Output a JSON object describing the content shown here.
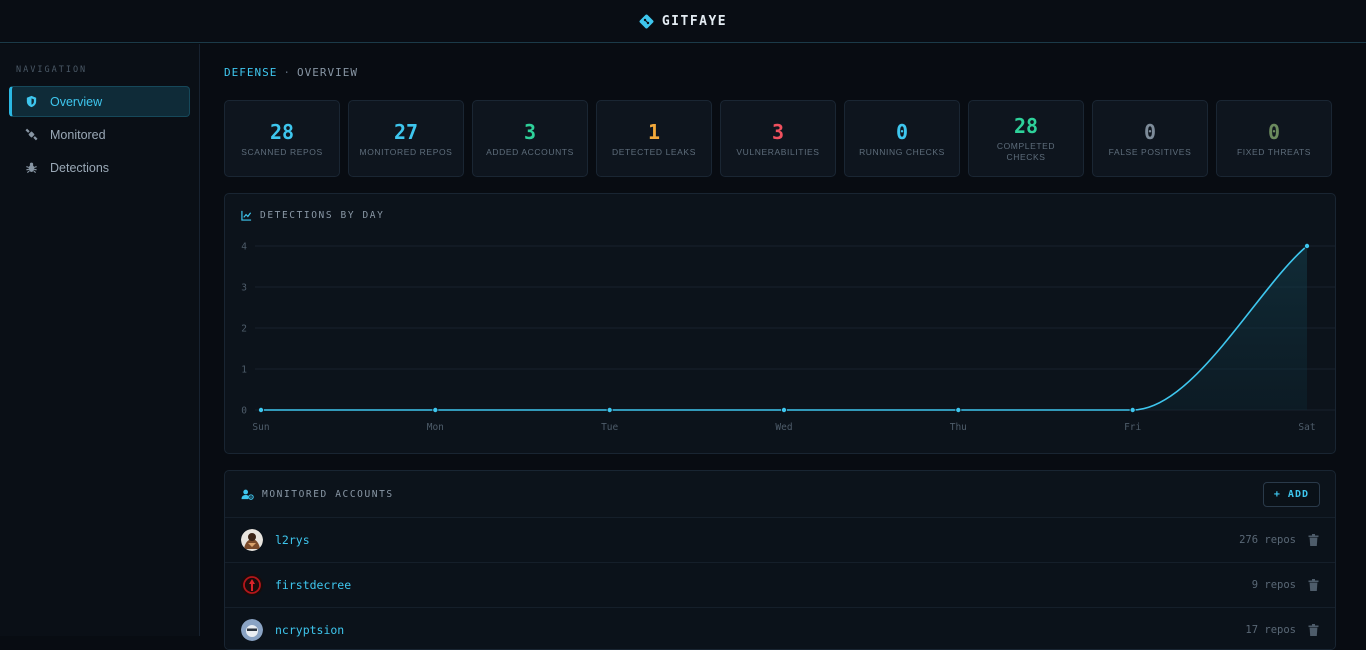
{
  "app": {
    "title": "GITFAYE"
  },
  "sidebar": {
    "heading": "NAVIGATION",
    "items": [
      {
        "label": "Overview",
        "icon": "shield-icon",
        "active": true
      },
      {
        "label": "Monitored",
        "icon": "satellite-icon",
        "active": false
      },
      {
        "label": "Detections",
        "icon": "bug-icon",
        "active": false
      }
    ]
  },
  "breadcrumb": {
    "section": "DEFENSE",
    "separator": "·",
    "page": "OVERVIEW"
  },
  "stats": [
    {
      "value": "28",
      "label": "SCANNED REPOS",
      "color": "#3ec6ee"
    },
    {
      "value": "27",
      "label": "MONITORED REPOS",
      "color": "#3ec6ee"
    },
    {
      "value": "3",
      "label": "ADDED ACCOUNTS",
      "color": "#2ed19a"
    },
    {
      "value": "1",
      "label": "DETECTED LEAKS",
      "color": "#f2a93b"
    },
    {
      "value": "3",
      "label": "VULNERABILITIES",
      "color": "#f0505e"
    },
    {
      "value": "0",
      "label": "RUNNING CHECKS",
      "color": "#3ec6ee"
    },
    {
      "value": "28",
      "label": "COMPLETED CHECKS",
      "color": "#2ed19a"
    },
    {
      "value": "0",
      "label": "FALSE POSITIVES",
      "color": "#7d8b99"
    },
    {
      "value": "0",
      "label": "FIXED THREATS",
      "color": "#6b8a5e"
    }
  ],
  "chart_data": {
    "type": "area",
    "title": "DETECTIONS BY DAY",
    "categories": [
      "Sun",
      "Mon",
      "Tue",
      "Wed",
      "Thu",
      "Fri",
      "Sat"
    ],
    "values": [
      0,
      0,
      0,
      0,
      0,
      0,
      4
    ],
    "yticks": [
      "0",
      "1",
      "2",
      "3",
      "4"
    ],
    "ylim": [
      0,
      4
    ],
    "grid": true,
    "color": "#3ec6ee"
  },
  "accounts": {
    "title": "MONITORED ACCOUNTS",
    "add_label": "+ ADD",
    "rows": [
      {
        "name": "l2rys",
        "repos": "276 repos"
      },
      {
        "name": "firstdecree",
        "repos": "9 repos"
      },
      {
        "name": "ncryptsion",
        "repos": "17 repos"
      }
    ]
  }
}
